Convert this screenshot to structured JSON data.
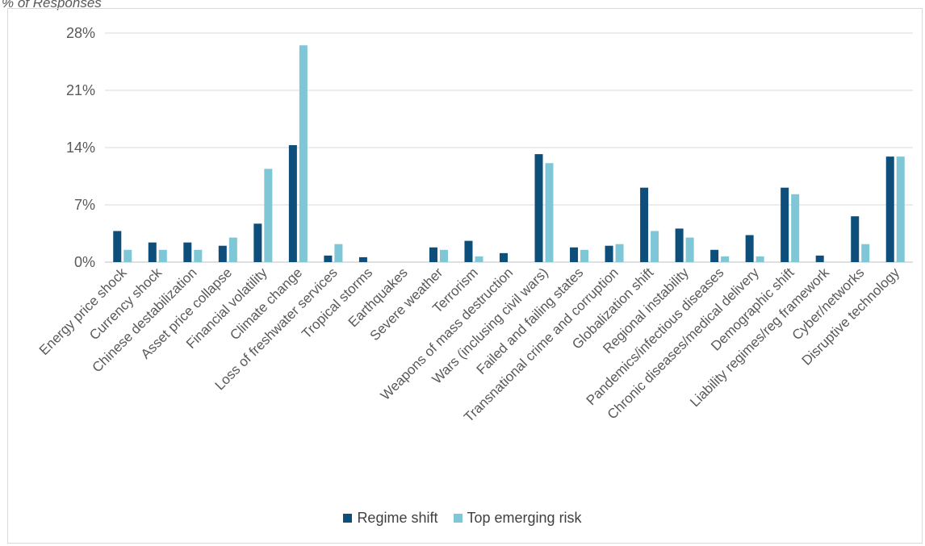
{
  "chart_data": {
    "type": "bar",
    "title": "",
    "ylabel": "% of Responses",
    "xlabel": "",
    "ylim": [
      0,
      28
    ],
    "yticks": [
      0,
      7,
      14,
      21,
      28
    ],
    "ytick_labels": [
      "0%",
      "7%",
      "14%",
      "21%",
      "28%"
    ],
    "grid": true,
    "legend": "bottom",
    "categories": [
      "Energy price shock",
      "Currency shock",
      "Chinese destabilization",
      "Asset price collapse",
      "Financial volatility",
      "Climate change",
      "Loss of freshwater services",
      "Tropical storms",
      "Earthquakes",
      "Severe weather",
      "Terrorism",
      "Weapons of mass destruction",
      "Wars (inclusing civil wars)",
      "Failed and failing states",
      "Transnational crime and corruption",
      "Globalization shift",
      "Regional instability",
      "Pandemics/infectious diseases",
      "Chronic diseases/medical delivery",
      "Demographic shift",
      "Liability regimes/reg framework",
      "Cyber/networks",
      "Disruptive technology"
    ],
    "series": [
      {
        "name": "Regime shift",
        "color": "#0d4e7a",
        "values": [
          3.8,
          2.4,
          2.4,
          2.0,
          4.7,
          14.3,
          0.8,
          0.6,
          0,
          1.8,
          2.6,
          1.1,
          13.2,
          1.8,
          2.0,
          9.1,
          4.1,
          1.5,
          3.3,
          9.1,
          0.8,
          5.6,
          12.9
        ]
      },
      {
        "name": "Top emerging risk",
        "color": "#7fc6d6",
        "values": [
          1.5,
          1.5,
          1.5,
          3.0,
          11.4,
          26.5,
          2.2,
          0,
          0,
          1.5,
          0.7,
          0,
          12.1,
          1.5,
          2.2,
          3.8,
          3.0,
          0.7,
          0.7,
          8.3,
          0,
          2.2,
          12.9
        ]
      }
    ]
  }
}
